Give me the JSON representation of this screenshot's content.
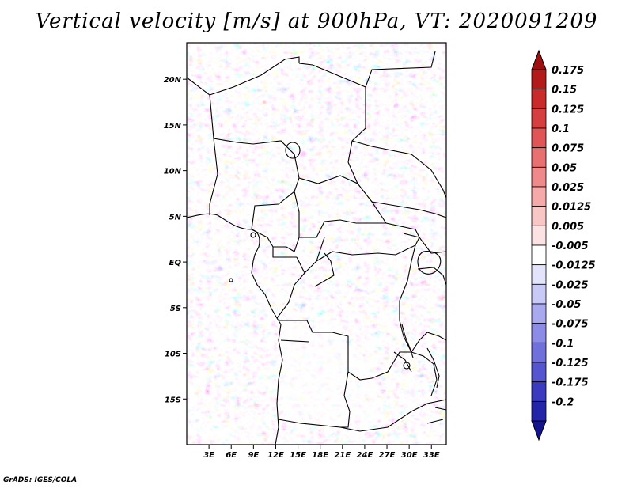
{
  "title": "Vertical velocity [m/s] at 900hPa, VT: 2020091209",
  "credit": "GrADS: IGES/COLA",
  "map": {
    "region": "Central Africa",
    "variable": "Vertical velocity",
    "units": "m/s",
    "level": "900hPa",
    "valid_time": "2020091209",
    "lon_range": [
      0,
      35
    ],
    "lat_range": [
      -20,
      24
    ],
    "x_ticks": [
      {
        "value": 3,
        "label": "3E"
      },
      {
        "value": 6,
        "label": "6E"
      },
      {
        "value": 9,
        "label": "9E"
      },
      {
        "value": 12,
        "label": "12E"
      },
      {
        "value": 15,
        "label": "15E"
      },
      {
        "value": 18,
        "label": "18E"
      },
      {
        "value": 21,
        "label": "21E"
      },
      {
        "value": 24,
        "label": "24E"
      },
      {
        "value": 27,
        "label": "27E"
      },
      {
        "value": 30,
        "label": "30E"
      },
      {
        "value": 33,
        "label": "33E"
      }
    ],
    "y_ticks": [
      {
        "value": 20,
        "label": "20N"
      },
      {
        "value": 15,
        "label": "15N"
      },
      {
        "value": 10,
        "label": "10N"
      },
      {
        "value": 5,
        "label": "5N"
      },
      {
        "value": 0,
        "label": "EQ"
      },
      {
        "value": -5,
        "label": "5S"
      },
      {
        "value": -10,
        "label": "10S"
      },
      {
        "value": -15,
        "label": "15S"
      }
    ]
  },
  "colorbar": {
    "levels": [
      {
        "label": "0.175",
        "color": "#b31a1a"
      },
      {
        "label": "0.15",
        "color": "#c92a2a"
      },
      {
        "label": "0.125",
        "color": "#d63f3f"
      },
      {
        "label": "0.1",
        "color": "#e05555"
      },
      {
        "label": "0.075",
        "color": "#e87070"
      },
      {
        "label": "0.05",
        "color": "#ef8a8a"
      },
      {
        "label": "0.025",
        "color": "#f5a9a9"
      },
      {
        "label": "0.0125",
        "color": "#f9c6c6"
      },
      {
        "label": "0.005",
        "color": "#fce3e3"
      },
      {
        "label": "-0.005",
        "color": "#ffffff"
      },
      {
        "label": "-0.0125",
        "color": "#e3e3fb"
      },
      {
        "label": "-0.025",
        "color": "#c9c9f6"
      },
      {
        "label": "-0.05",
        "color": "#a9a9ef"
      },
      {
        "label": "-0.075",
        "color": "#8c8ce6"
      },
      {
        "label": "-0.1",
        "color": "#7070db"
      },
      {
        "label": "-0.125",
        "color": "#5555cf"
      },
      {
        "label": "-0.175",
        "color": "#3b3bbf"
      },
      {
        "label": "-0.2",
        "color": "#2424a8"
      }
    ],
    "top_arrow_color": "#9e1010",
    "bottom_arrow_color": "#14148f"
  }
}
